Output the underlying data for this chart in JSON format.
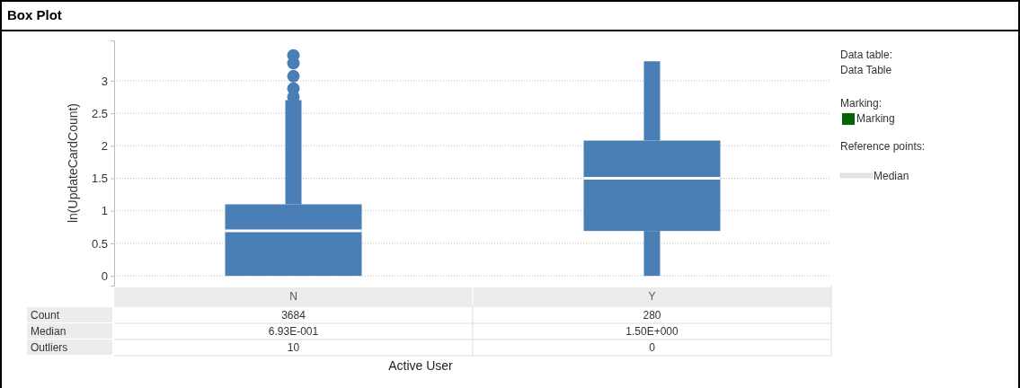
{
  "chart_data": {
    "type": "box",
    "title": "Box Plot",
    "xlabel": "Active User",
    "ylabel": "ln(UpdateCardCount)",
    "categories": [
      "N",
      "Y"
    ],
    "boxes": [
      {
        "low": 0,
        "q1": 0,
        "median": 0.693,
        "q3": 1.1,
        "high": 2.7,
        "outliers": [
          2.75,
          2.88,
          3.07,
          3.27,
          3.39
        ]
      },
      {
        "low": 0,
        "q1": 0.69,
        "median": 1.5,
        "q3": 2.08,
        "high": 3.3
      }
    ],
    "color": "#4a7fb5",
    "ylim": [
      -0.15,
      3.62
    ],
    "yticks": [
      0,
      0.5,
      1,
      1.5,
      2,
      2.5,
      3
    ],
    "grid": "y",
    "annotations": [
      "Count",
      "3684",
      "280",
      "Median",
      "6.93E-001",
      "1.50E+000",
      "Outliers",
      "10",
      "0",
      "Data table:",
      "Data Table",
      "Marking:",
      "Marking",
      "Reference points:",
      "Median"
    ]
  }
}
